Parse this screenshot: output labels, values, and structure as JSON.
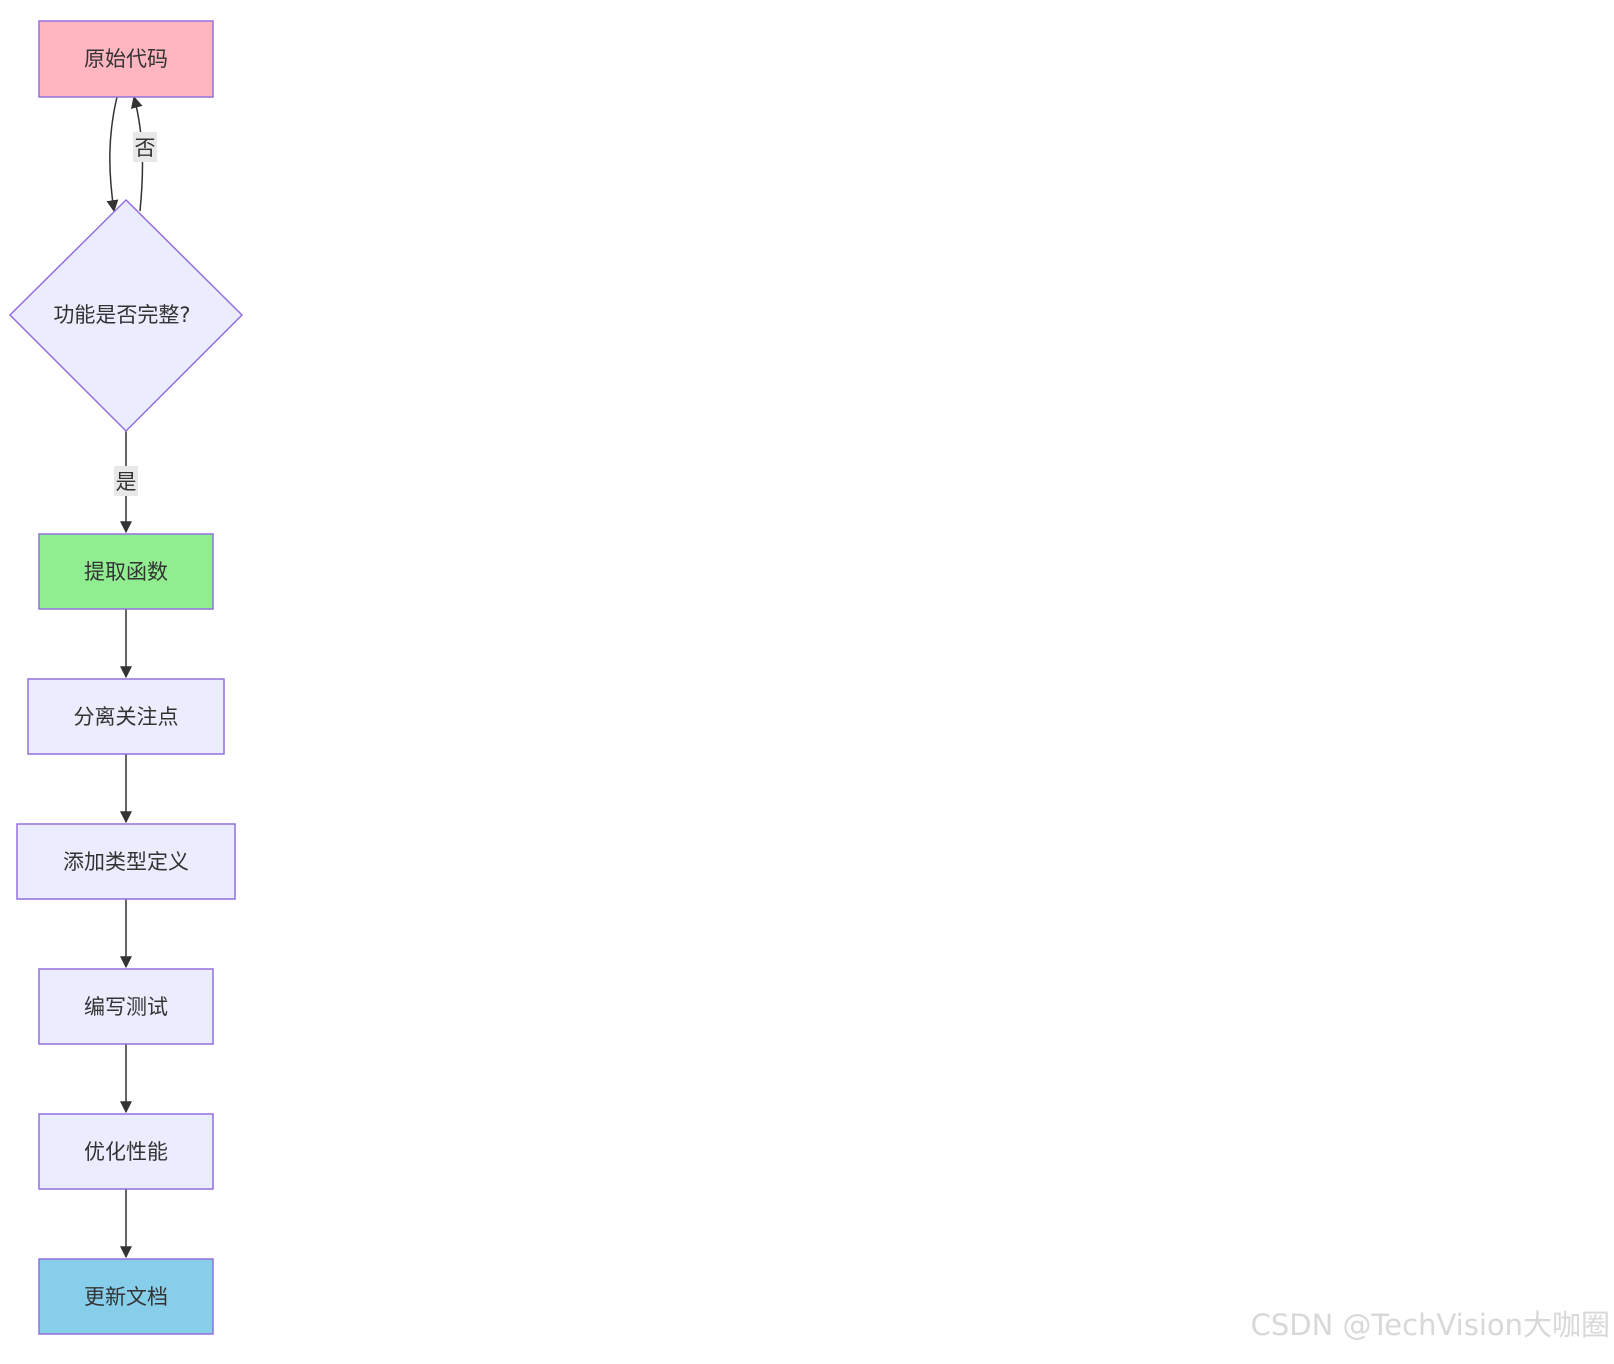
{
  "flowchart": {
    "nodes": {
      "original_code": {
        "label": "原始代码",
        "fill": "#FFB6C1"
      },
      "decision": {
        "label": "功能是否完整?",
        "fill": "#ECECFF"
      },
      "extract": {
        "label": "提取函数",
        "fill": "#90EE90"
      },
      "separate": {
        "label": "分离关注点",
        "fill": "#ECECFF"
      },
      "types": {
        "label": "添加类型定义",
        "fill": "#ECECFF"
      },
      "tests": {
        "label": "编写测试",
        "fill": "#ECECFF"
      },
      "optimize": {
        "label": "优化性能",
        "fill": "#ECECFF"
      },
      "docs": {
        "label": "更新文档",
        "fill": "#87CEEB"
      }
    },
    "edges": [
      {
        "from": "原始代码",
        "to": "功能是否完整?",
        "label": ""
      },
      {
        "from": "功能是否完整?",
        "to": "原始代码",
        "label": "否"
      },
      {
        "from": "功能是否完整?",
        "to": "提取函数",
        "label": "是"
      },
      {
        "from": "提取函数",
        "to": "分离关注点",
        "label": ""
      },
      {
        "from": "分离关注点",
        "to": "添加类型定义",
        "label": ""
      },
      {
        "from": "添加类型定义",
        "to": "编写测试",
        "label": ""
      },
      {
        "from": "编写测试",
        "to": "优化性能",
        "label": ""
      },
      {
        "from": "优化性能",
        "to": "更新文档",
        "label": ""
      }
    ],
    "edge_labels": {
      "no": "否",
      "yes": "是"
    },
    "colors": {
      "node_stroke": "#9370DB",
      "edge_stroke": "#333333",
      "edge_label_bg": "#E8E8E8"
    }
  },
  "watermark": "CSDN @TechVision大咖圈"
}
